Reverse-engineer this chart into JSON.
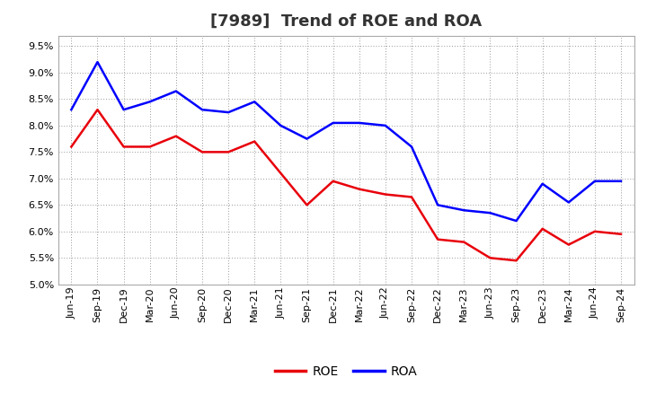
{
  "title": "[7989]  Trend of ROE and ROA",
  "x_labels": [
    "Jun-19",
    "Sep-19",
    "Dec-19",
    "Mar-20",
    "Jun-20",
    "Sep-20",
    "Dec-20",
    "Mar-21",
    "Jun-21",
    "Sep-21",
    "Dec-21",
    "Mar-22",
    "Jun-22",
    "Sep-22",
    "Dec-22",
    "Mar-23",
    "Jun-23",
    "Sep-23",
    "Dec-23",
    "Mar-24",
    "Jun-24",
    "Sep-24"
  ],
  "roe": [
    7.6,
    8.3,
    7.6,
    7.6,
    7.8,
    7.5,
    7.5,
    7.7,
    7.1,
    6.5,
    6.95,
    6.8,
    6.7,
    6.65,
    5.85,
    5.8,
    5.5,
    5.45,
    6.05,
    5.75,
    6.0,
    5.95
  ],
  "roa": [
    8.3,
    9.2,
    8.3,
    8.45,
    8.65,
    8.3,
    8.25,
    8.45,
    8.0,
    7.75,
    8.05,
    8.05,
    8.0,
    7.6,
    6.5,
    6.4,
    6.35,
    6.2,
    6.9,
    6.55,
    6.95,
    6.95
  ],
  "roe_color": "#e8000b",
  "roa_color": "#0000ff",
  "background_color": "#ffffff",
  "plot_bg_color": "#ffffff",
  "grid_color": "#999999",
  "ylim": [
    5.0,
    9.7
  ],
  "yticks": [
    5.0,
    5.5,
    6.0,
    6.5,
    7.0,
    7.5,
    8.0,
    8.5,
    9.0,
    9.5
  ],
  "title_fontsize": 13,
  "title_color": "#333333",
  "legend_labels": [
    "ROE",
    "ROA"
  ],
  "line_width": 1.8,
  "tick_fontsize": 8,
  "ytick_fontsize": 8
}
